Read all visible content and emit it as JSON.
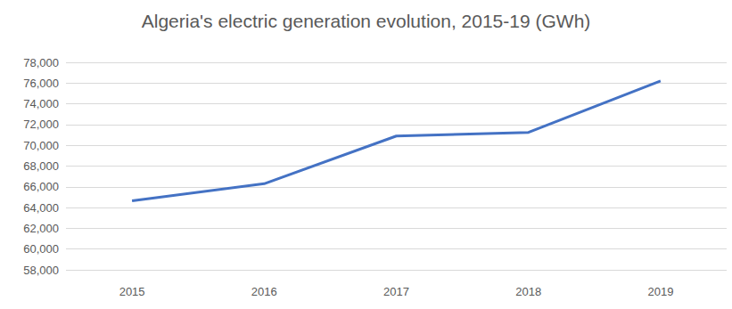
{
  "chart_data": {
    "type": "line",
    "title": "Algeria's electric generation evolution, 2015-19 (GWh)",
    "categories": [
      "2015",
      "2016",
      "2017",
      "2018",
      "2019"
    ],
    "values": [
      64650,
      66300,
      70900,
      71250,
      76200
    ],
    "color": "#4472c4",
    "ylim": [
      58000,
      78000
    ],
    "yticks": [
      {
        "value": 58000,
        "label": "58,000"
      },
      {
        "value": 60000,
        "label": "60,000"
      },
      {
        "value": 62000,
        "label": "62,000"
      },
      {
        "value": 64000,
        "label": "64,000"
      },
      {
        "value": 66000,
        "label": "66,000"
      },
      {
        "value": 68000,
        "label": "68,000"
      },
      {
        "value": 70000,
        "label": "70,000"
      },
      {
        "value": 72000,
        "label": "72,000"
      },
      {
        "value": 74000,
        "label": "74,000"
      },
      {
        "value": 76000,
        "label": "76,000"
      },
      {
        "value": 78000,
        "label": "78,000"
      }
    ],
    "grid": true
  }
}
